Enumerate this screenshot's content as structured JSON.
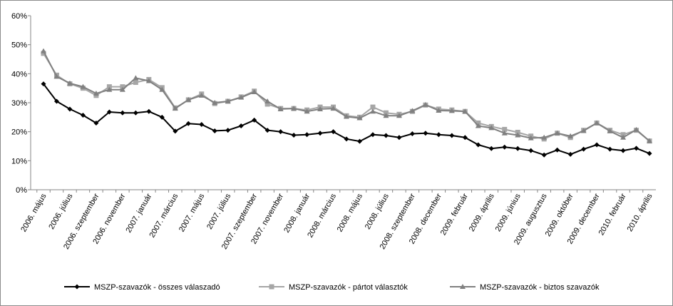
{
  "chart_data": {
    "type": "line",
    "ylim": [
      0,
      60
    ],
    "y_ticks": [
      "0%",
      "10%",
      "20%",
      "30%",
      "40%",
      "50%",
      "60%"
    ],
    "grid": false,
    "legend_position": "bottom",
    "x_labels": [
      "2006. május",
      "2006. július",
      "2006. szeptember",
      "2006. november",
      "2007. január",
      "2007. március",
      "2007. május",
      "2007. július",
      "2007. szeptember",
      "2007. november",
      "2008. január",
      "2008. március",
      "2008. május",
      "2008. július",
      "2008. szeptember",
      "2008. december",
      "2009. február",
      "2009. április",
      "2009. június",
      "2009. augusztus",
      "2009. október",
      "2009. december",
      "2010. február",
      "2010. április"
    ],
    "x_label_index": [
      0,
      2,
      4,
      6,
      8,
      10,
      12,
      14,
      16,
      18,
      20,
      22,
      24,
      26,
      28,
      30,
      32,
      34,
      36,
      38,
      40,
      42,
      44,
      46
    ],
    "series": [
      {
        "name": "MSZP-szavazók - összes válaszadó",
        "color": "#000000",
        "marker": "diamond",
        "values": [
          36.5,
          30.5,
          27.8,
          25.7,
          23.0,
          26.8,
          26.5,
          26.5,
          27.0,
          25.0,
          20.2,
          22.8,
          22.5,
          20.3,
          20.5,
          22.0,
          24.0,
          20.5,
          20.0,
          18.8,
          19.0,
          19.5,
          20.0,
          17.5,
          16.7,
          19.0,
          18.7,
          18.0,
          19.3,
          19.5,
          19.0,
          18.7,
          18.0,
          15.5,
          14.2,
          14.7,
          14.2,
          13.5,
          12.0,
          13.7,
          12.2,
          14.0,
          15.5,
          14.0,
          13.5,
          14.3,
          12.5
        ]
      },
      {
        "name": "MSZP-szavazók - pártot választók",
        "color": "#a6a6a6",
        "marker": "square",
        "values": [
          47.0,
          39.5,
          36.5,
          35.0,
          32.5,
          35.5,
          35.5,
          37.0,
          38.0,
          35.2,
          28.2,
          31.0,
          33.0,
          29.7,
          30.5,
          32.0,
          34.0,
          29.5,
          28.0,
          28.0,
          27.5,
          28.5,
          28.5,
          25.5,
          25.0,
          28.5,
          26.5,
          26.0,
          27.0,
          29.2,
          27.8,
          27.5,
          27.0,
          23.0,
          21.8,
          20.8,
          19.8,
          18.5,
          17.5,
          19.5,
          18.0,
          20.5,
          23.0,
          20.5,
          19.0,
          20.5,
          16.8
        ]
      },
      {
        "name": "MSZP-szavazók - biztos szavazók",
        "color": "#808080",
        "marker": "triangle",
        "values": [
          47.8,
          39.0,
          36.7,
          35.5,
          33.2,
          34.5,
          34.5,
          38.5,
          37.5,
          34.5,
          28.0,
          31.0,
          32.5,
          30.0,
          30.5,
          31.8,
          33.7,
          30.5,
          27.8,
          28.0,
          27.0,
          27.8,
          28.0,
          25.2,
          24.7,
          27.0,
          25.5,
          25.5,
          27.2,
          29.3,
          27.3,
          27.2,
          27.0,
          22.0,
          21.3,
          19.5,
          18.8,
          17.8,
          18.0,
          19.5,
          18.5,
          20.3,
          23.0,
          20.2,
          18.0,
          20.7,
          16.8
        ]
      }
    ]
  }
}
